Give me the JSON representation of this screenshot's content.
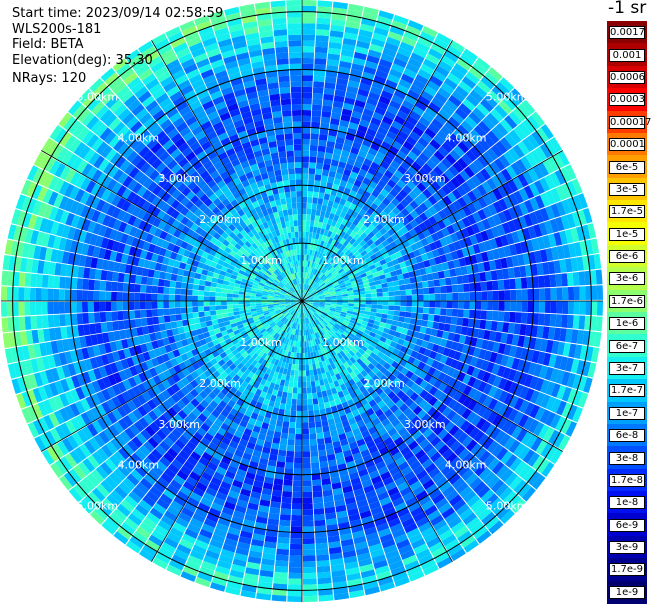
{
  "header": {
    "start_time": "Start time: 2023/09/14 02:58:59",
    "instrument": "WLS200s-181",
    "field": "Field: BETA",
    "elevation": "Elevation(deg): 35.30",
    "nrays": "NRays: 120"
  },
  "colorbar": {
    "title": "-1 sr",
    "labels": [
      "0.0017",
      "0.001",
      "0.0006",
      "0.0003",
      "0.00017",
      "0.0001",
      "6e-5",
      "3e-5",
      "1.7e-5",
      "1e-5",
      "6e-6",
      "3e-6",
      "1.7e-6",
      "1e-6",
      "6e-7",
      "3e-7",
      "1.7e-7",
      "1e-7",
      "6e-8",
      "3e-8",
      "1.7e-8",
      "1e-8",
      "6e-9",
      "3e-9",
      "1.7e-9",
      "1e-9"
    ],
    "colors": [
      "#8b0000",
      "#b00000",
      "#d80000",
      "#ff0000",
      "#ff3c00",
      "#ff7800",
      "#ff9f00",
      "#ffc400",
      "#ffe600",
      "#f5ff00",
      "#d2ff2a",
      "#b4ff4a",
      "#8cff6e",
      "#5cffa0",
      "#32ffd0",
      "#14f0f0",
      "#00c8ff",
      "#00a0ff",
      "#0078ff",
      "#0050ff",
      "#002cff",
      "#0010f0",
      "#0000d0",
      "#0000b0",
      "#000090",
      "#000070"
    ]
  },
  "chart_data": {
    "type": "heatmap",
    "projection": "polar PPI scan",
    "rays": 120,
    "range_rings_km": [
      1.0,
      2.0,
      3.0,
      4.0,
      5.0
    ],
    "ring_labels": [
      "1.00km",
      "2.00km",
      "3.00km",
      "4.00km",
      "5.00km"
    ],
    "max_range_km": 5.2,
    "field": "BETA",
    "unit": "-1 sr",
    "color_scale": "log, 1e-9 to 0.0017",
    "approx_profile": [
      {
        "range_km": 0.5,
        "beta": 3e-07
      },
      {
        "range_km": 1.5,
        "beta": 2e-07
      },
      {
        "range_km": 2.5,
        "beta": 5e-08
      },
      {
        "range_km": 3.5,
        "beta": 3e-08
      },
      {
        "range_km": 4.3,
        "beta": 8e-08
      },
      {
        "range_km": 4.9,
        "beta": 4e-07
      }
    ]
  }
}
